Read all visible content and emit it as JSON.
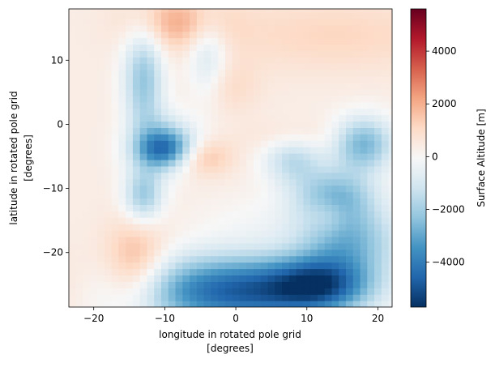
{
  "chart_data": {
    "type": "heatmap",
    "title": "",
    "xlabel": "longitude in rotated pole grid",
    "xlabel_units": "[degrees]",
    "ylabel": "latitude in rotated pole grid",
    "ylabel_units": "[degrees]",
    "xlim": [
      -23.5,
      22
    ],
    "ylim": [
      -28.5,
      18
    ],
    "x_ticks": [
      -20,
      -10,
      0,
      10,
      20
    ],
    "x_tick_labels": [
      "−20",
      "−10",
      "0",
      "10",
      "20"
    ],
    "y_ticks": [
      -20,
      -10,
      0,
      10
    ],
    "y_tick_labels": [
      "−20",
      "−10",
      "0",
      "10"
    ],
    "colorbar": {
      "label": "Surface Altitude [m]",
      "range": [
        -5700,
        5600
      ],
      "ticks": [
        -4000,
        -2000,
        0,
        2000,
        4000
      ],
      "tick_labels": [
        "−4000",
        "−2000",
        "0",
        "2000",
        "4000"
      ],
      "colormap": "RdBu_r",
      "stops": [
        "#053061",
        "#2166ac",
        "#4393c3",
        "#92c5de",
        "#d1e5f0",
        "#f7f7f7",
        "#fddbc7",
        "#f4a582",
        "#d6604d",
        "#b2182b",
        "#67001f"
      ]
    },
    "grid": false,
    "features": [
      {
        "lon": -10,
        "lat": -3,
        "sx": 3,
        "sy": 3,
        "value": -2500
      },
      {
        "lon": 8,
        "lat": -5,
        "sx": 3,
        "sy": 3,
        "value": -2000
      },
      {
        "lon": 14,
        "lat": 14,
        "sx": 12,
        "sy": 4,
        "value": 800
      },
      {
        "lon": -24,
        "lat": -25,
        "sx": 5,
        "sy": 4,
        "value": 400
      },
      {
        "lon": -8,
        "lat": 16,
        "sx": 5,
        "sy": 3,
        "value": 1600
      },
      {
        "lon": -13,
        "lat": 7,
        "sx": 2,
        "sy": 6,
        "value": -2600
      },
      {
        "lon": -4,
        "lat": 11,
        "sx": 2,
        "sy": 5,
        "value": -1500
      },
      {
        "lon": -10,
        "lat": -4,
        "sx": 3,
        "sy": 2,
        "value": -2500
      },
      {
        "lon": -13,
        "lat": -11,
        "sx": 2,
        "sy": 3,
        "value": -2500
      },
      {
        "lon": 0,
        "lat": -26,
        "sx": 10,
        "sy": 4,
        "value": -5000
      },
      {
        "lon": -14,
        "lat": -22,
        "sx": 3,
        "sy": 5,
        "value": 1800
      },
      {
        "lon": 18,
        "lat": -3,
        "sx": 3,
        "sy": 3,
        "value": -3000
      },
      {
        "lon": 14,
        "lat": -11,
        "sx": 4,
        "sy": 3,
        "value": -2600
      },
      {
        "lon": 16,
        "lat": -18,
        "sx": 5,
        "sy": 4,
        "value": -2800
      },
      {
        "lon": 12,
        "lat": -25,
        "sx": 5,
        "sy": 3,
        "value": -3600
      },
      {
        "lon": -1,
        "lat": 6,
        "sx": 3,
        "sy": 3,
        "value": 700
      },
      {
        "lon": -5,
        "lat": -5,
        "sx": 3,
        "sy": 2,
        "value": 1500
      },
      {
        "lon": 13,
        "lat": -14,
        "sx": 2,
        "sy": 2,
        "value": 900
      },
      {
        "lon": 8,
        "lat": -2,
        "sx": 4,
        "sy": 2,
        "value": 900
      },
      {
        "lon": 3,
        "lat": -15,
        "sx": 6,
        "sy": 3,
        "value": -400
      }
    ]
  }
}
